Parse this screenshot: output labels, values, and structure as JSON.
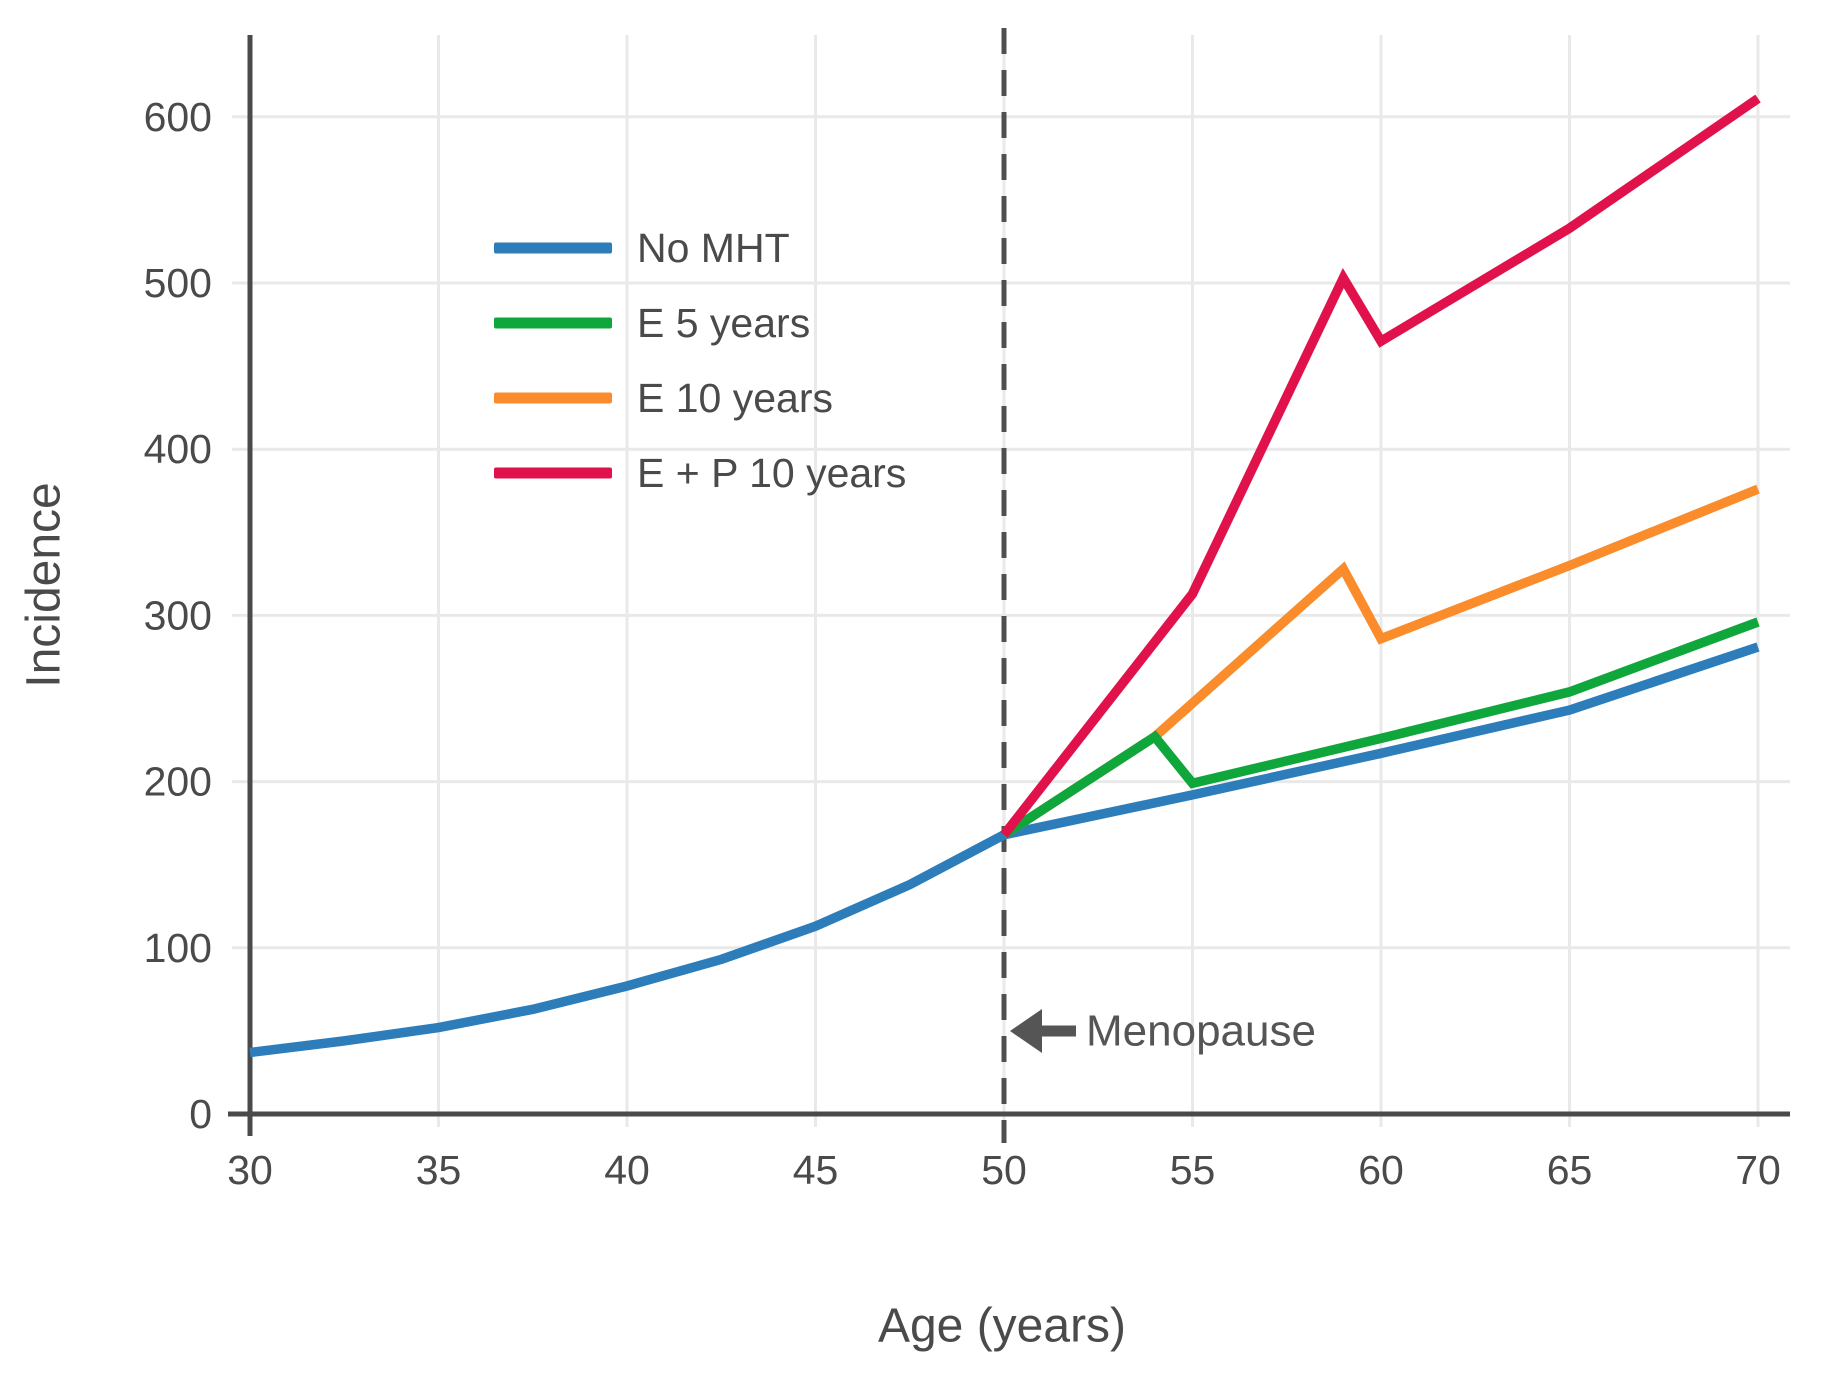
{
  "chart_data": {
    "type": "line",
    "title": "",
    "xlabel": "Age (years)",
    "ylabel": "Incidence",
    "x_ticks": [
      30,
      35,
      40,
      45,
      50,
      55,
      60,
      65,
      70
    ],
    "x_tick_labels": [
      "30",
      "35",
      "40",
      "45",
      "50",
      "55",
      "60",
      "65",
      "70"
    ],
    "y_ticks": [
      0,
      100,
      200,
      300,
      400,
      500,
      600
    ],
    "y_tick_labels": [
      "0",
      "100",
      "200",
      "300",
      "400",
      "500",
      "600"
    ],
    "xlim": [
      30,
      70.9
    ],
    "ylim": [
      0,
      649
    ],
    "grid": true,
    "legend_position": "upper-left-inside",
    "vline": {
      "x": 50,
      "style": "dashed"
    },
    "annotation": {
      "label": "Menopause",
      "x": 50,
      "y": 50,
      "arrow": "left"
    },
    "series": [
      {
        "id": "no-mht",
        "name": "No MHT",
        "color": "#2d7dbb",
        "x": [
          30,
          32.5,
          35,
          37.5,
          40,
          42.5,
          45,
          47.5,
          50,
          55,
          60,
          65,
          70
        ],
        "y": [
          37,
          44,
          52,
          63,
          77,
          93,
          113,
          138,
          168,
          192,
          217,
          243,
          281
        ]
      },
      {
        "id": "e-10-years",
        "name": "E 10 years",
        "color": "#fb8c2b",
        "x": [
          50,
          54,
          59,
          60,
          65,
          70
        ],
        "y": [
          168,
          227,
          328,
          286,
          330,
          376
        ]
      },
      {
        "id": "e-5-years",
        "name": "E 5 years",
        "color": "#0fa63c",
        "x": [
          50,
          54,
          55,
          60,
          65,
          70
        ],
        "y": [
          168,
          227,
          199,
          226,
          254,
          296
        ]
      },
      {
        "id": "e-p-10-years",
        "name": "E + P 10 years",
        "color": "#e1114b",
        "x": [
          50,
          55,
          59,
          60,
          65,
          70
        ],
        "y": [
          168,
          313,
          503,
          465,
          533,
          611
        ]
      }
    ],
    "legend_order": [
      "no-mht",
      "e-5-years",
      "e-10-years",
      "e-p-10-years"
    ]
  },
  "colors": {
    "background": "#ffffff",
    "grid": "#e9e9e9",
    "axis": "#4a4a4a",
    "tick_text": "#4a4a4a",
    "legend_text": "#4a4a4a",
    "dashed_line": "#4f4f4f",
    "annotation": "#555555"
  }
}
